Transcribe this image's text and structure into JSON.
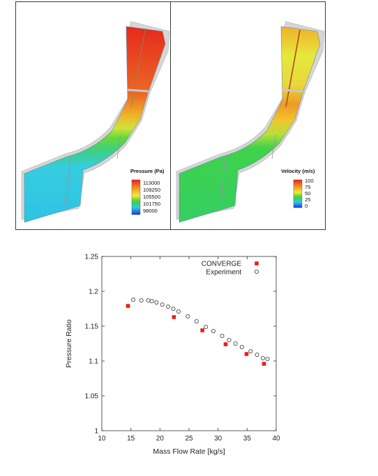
{
  "contour_panels": [
    {
      "legend_title": "Pressure (Pa)",
      "legend_ticks": [
        "113000",
        "109250",
        "105500",
        "101750",
        "98000"
      ],
      "legend_colors": [
        "#e8221a",
        "#ee9a20",
        "#f2e83a",
        "#3fd23a",
        "#2fc8e6",
        "#1a3ad8"
      ]
    },
    {
      "legend_title": "Velocity (m/s)",
      "legend_ticks": [
        "100",
        "75",
        "50",
        "25",
        "0"
      ],
      "legend_colors": [
        "#e8221a",
        "#ee9a20",
        "#f2e83a",
        "#3fd23a",
        "#2fc8e6",
        "#1a3ad8"
      ]
    }
  ],
  "chart_data": {
    "type": "scatter",
    "xlabel": "Mass Flow Rate [kg/s]",
    "ylabel": "Pressure Ratio",
    "xlim": [
      10,
      40
    ],
    "ylim": [
      1,
      1.25
    ],
    "xticks": [
      "10",
      "15",
      "20",
      "25",
      "30",
      "35",
      "40"
    ],
    "yticks": [
      "1",
      "1.05",
      "1.1",
      "1.15",
      "1.2",
      "1.25"
    ],
    "legend_position": "top-right",
    "series": [
      {
        "name": "CONVERGE",
        "marker": "square",
        "color": "#e8221a",
        "points": [
          [
            14.5,
            1.179
          ],
          [
            22.4,
            1.163
          ],
          [
            27.3,
            1.144
          ],
          [
            31.3,
            1.124
          ],
          [
            34.9,
            1.11
          ],
          [
            37.9,
            1.096
          ]
        ]
      },
      {
        "name": "Experiment",
        "marker": "circle-open",
        "color": "#333333",
        "points": [
          [
            15.4,
            1.188
          ],
          [
            16.8,
            1.187
          ],
          [
            18.0,
            1.187
          ],
          [
            18.6,
            1.186
          ],
          [
            19.4,
            1.184
          ],
          [
            20.4,
            1.181
          ],
          [
            21.4,
            1.178
          ],
          [
            22.3,
            1.175
          ],
          [
            23.2,
            1.171
          ],
          [
            24.8,
            1.164
          ],
          [
            26.3,
            1.157
          ],
          [
            27.9,
            1.149
          ],
          [
            29.2,
            1.143
          ],
          [
            30.7,
            1.136
          ],
          [
            31.9,
            1.13
          ],
          [
            33.0,
            1.125
          ],
          [
            34.1,
            1.12
          ],
          [
            35.6,
            1.114
          ],
          [
            36.7,
            1.109
          ],
          [
            37.7,
            1.104
          ],
          [
            38.5,
            1.103
          ]
        ]
      }
    ]
  }
}
